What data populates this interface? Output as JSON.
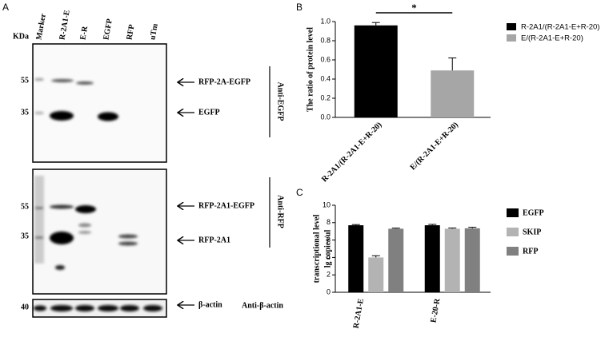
{
  "blot": {
    "panel_label": "A",
    "unit": "KDa",
    "lanes": [
      "Marker",
      "R-2A1-E",
      "E-R",
      "EGFP",
      "RFP",
      "uTm"
    ],
    "markers": [
      "55",
      "35",
      "55",
      "35",
      "40"
    ],
    "bands": [
      "RFP-2A-EGFP",
      "EGFP",
      "RFP-2A1-EGFP",
      "RFP-2A1",
      "β-actin"
    ],
    "antibodies": [
      "Anti-EGFP",
      "Anti-RFP",
      "Anti-β-actin"
    ]
  },
  "chart_data": [
    {
      "type": "bar",
      "panel_label": "B",
      "y_label": "The ratio of protein level",
      "categories": [
        "R-2A1/(R-2A1-E+R-20)",
        "E/(R-2A1-E+R-20)"
      ],
      "values": [
        0.96,
        0.49
      ],
      "errors": [
        0.03,
        0.13
      ],
      "colors": [
        "#000000",
        "#a6a6a6"
      ],
      "annotation": "*",
      "ylim": [
        0,
        1.0
      ],
      "yticks": [
        {
          "value": 0,
          "label": "0.0"
        },
        {
          "value": 0.2,
          "label": "0.2"
        },
        {
          "value": 0.4,
          "label": "0.4"
        },
        {
          "value": 0.6,
          "label": "0.6"
        },
        {
          "value": 0.8,
          "label": "0.8"
        },
        {
          "value": 1.0,
          "label": "1.0"
        }
      ],
      "legend": "right"
    },
    {
      "type": "grouped-bar",
      "panel_label": "C",
      "y_label": [
        "transcriptional level",
        "lg copies/ul"
      ],
      "categories": [
        "R-2A1-E",
        "E-20-R"
      ],
      "series": [
        {
          "name": "EGFP",
          "color": "#000000",
          "values": [
            7.7,
            7.7
          ],
          "errors": [
            0.08,
            0.1
          ]
        },
        {
          "name": "SKIP",
          "color": "#b3b3b3",
          "values": [
            4.0,
            7.3
          ],
          "errors": [
            0.2,
            0.08
          ]
        },
        {
          "name": "RFP",
          "color": "#808080",
          "values": [
            7.3,
            7.35
          ],
          "errors": [
            0.07,
            0.12
          ]
        }
      ],
      "ylim": [
        0,
        10
      ],
      "yticks": [
        0,
        2,
        4,
        6,
        8,
        10
      ],
      "legend": "right"
    }
  ]
}
